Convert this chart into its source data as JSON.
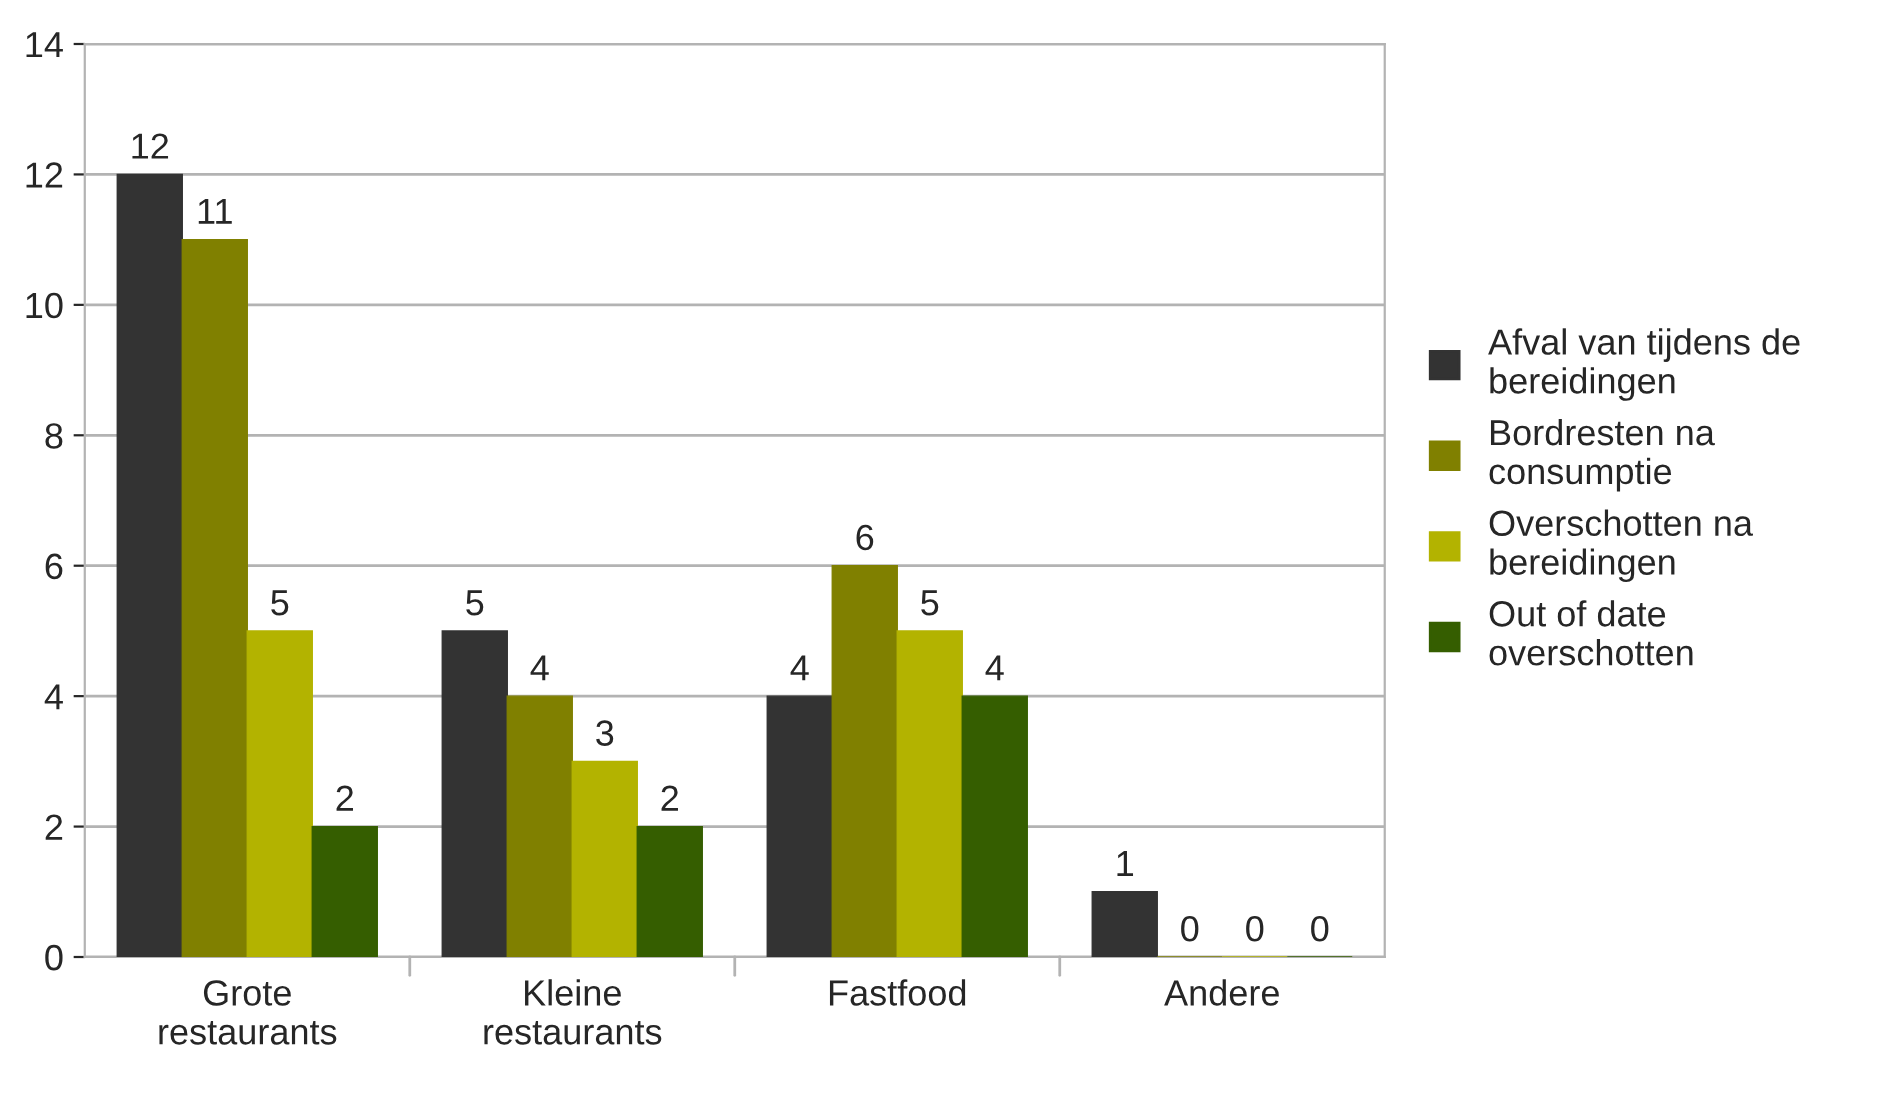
{
  "chart_data": {
    "type": "bar",
    "categories": [
      "Grote\nrestaurants",
      "Kleine\nrestaurants",
      "Fastfood",
      "Andere"
    ],
    "series": [
      {
        "name": "Afval van tijdens de\nbereidingen",
        "color": "#333333",
        "values": [
          12,
          5,
          4,
          1
        ]
      },
      {
        "name": "Bordresten na\nconsumptie",
        "color": "#808000",
        "values": [
          11,
          4,
          6,
          0
        ]
      },
      {
        "name": "Overschotten na\nbereidingen",
        "color": "#b3b300",
        "values": [
          5,
          3,
          5,
          0
        ]
      },
      {
        "name": "Out of date\noverschotten",
        "color": "#355e00",
        "values": [
          2,
          2,
          4,
          0
        ]
      }
    ],
    "ylim": [
      0,
      14
    ],
    "yticks": [
      0,
      2,
      4,
      6,
      8,
      10,
      12,
      14
    ],
    "grid": "y",
    "legend": "right",
    "data_labels": true
  }
}
